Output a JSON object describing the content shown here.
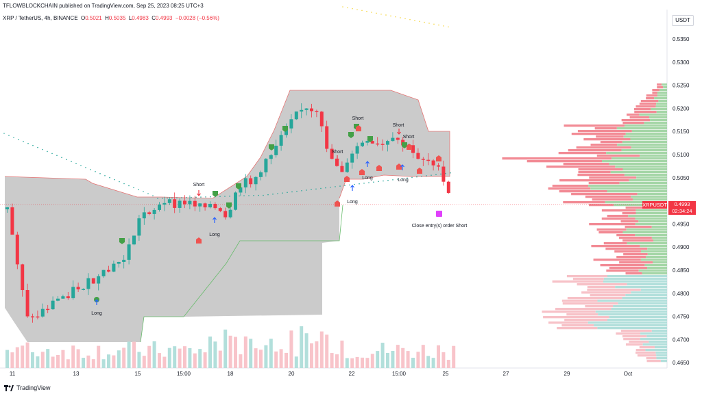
{
  "header": {
    "credit": "TFLOWBLOCKCHAIN published on TradingView.com, Sep 25, 2023 08:25 UTC+3",
    "symbol": "XRP / TetherUS, 4h, BINANCE",
    "o_label": "O",
    "o_value": "0.5021",
    "h_label": "H",
    "h_value": "0.5035",
    "l_label": "L",
    "l_value": "0.4983",
    "c_label": "C",
    "c_value": "0.4993",
    "change": "−0.0028 (−0.56%)"
  },
  "currency": "USDT",
  "price_axis": [
    "0.5350",
    "0.5300",
    "0.5250",
    "0.5200",
    "0.5150",
    "0.5100",
    "0.5050",
    "0.4950",
    "0.4900",
    "0.4850",
    "0.4800",
    "0.4750",
    "0.4700",
    "0.4650"
  ],
  "time_axis": [
    "11",
    "13",
    "15",
    "15:00",
    "18",
    "20",
    "22",
    "15:00",
    "25",
    "27",
    "29",
    "Oct"
  ],
  "last_price": {
    "symbol": "XRPUSDT",
    "value": "0.4993",
    "countdown": "02:34:24"
  },
  "signals": [
    {
      "text": "Short"
    },
    {
      "text": "Long"
    },
    {
      "text": "Long"
    },
    {
      "text": "Short"
    },
    {
      "text": "Long"
    },
    {
      "text": "Short"
    },
    {
      "text": "Long"
    },
    {
      "text": "Short"
    },
    {
      "text": "Short"
    },
    {
      "text": "Long"
    },
    {
      "text": "Close entry(s) order Short"
    }
  ],
  "footer": {
    "brand": "TradingView"
  },
  "colors": {
    "up": "#26a69a",
    "down": "#f23645",
    "band": "#c8c8c8",
    "vp_up": "#a5d6a7",
    "vp_down": "#f28b95"
  }
}
